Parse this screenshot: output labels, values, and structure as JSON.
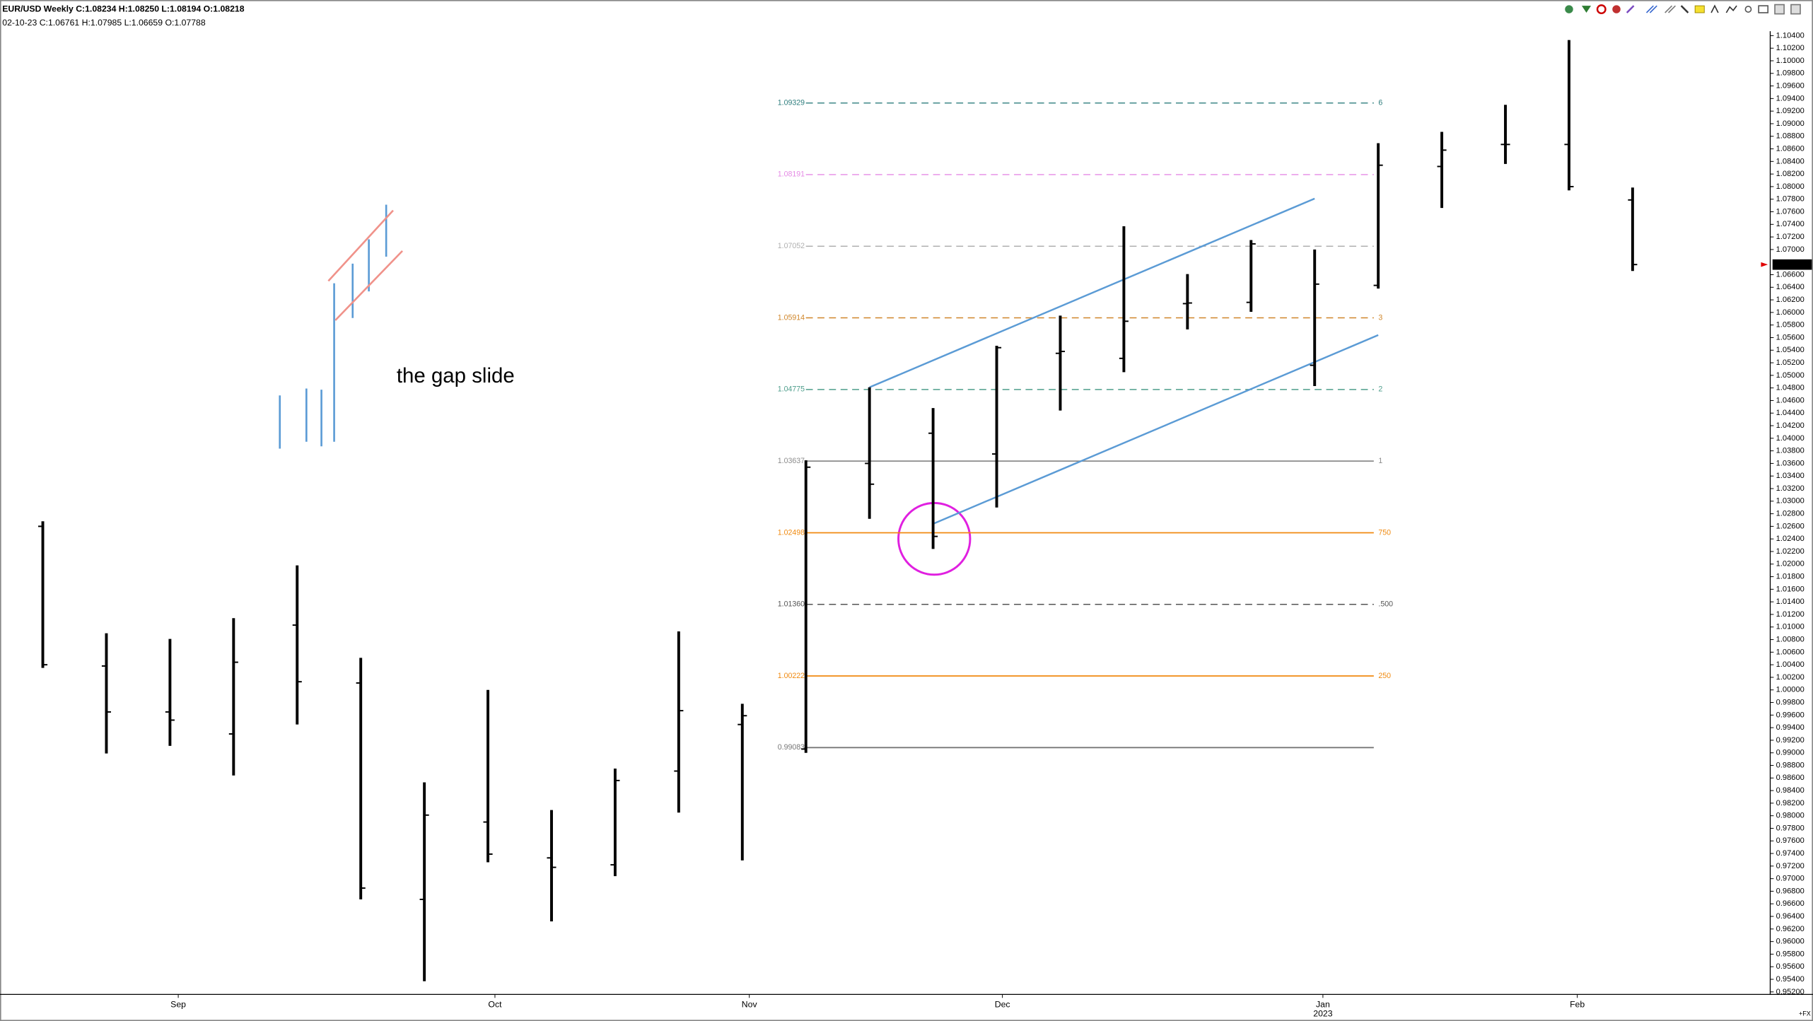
{
  "chart_data": {
    "type": "ohlc",
    "header": "EUR/USD Weekly  C:1.08234  H:1.08250  L:1.08194  O:1.08218",
    "subheader": "02-10-23  C:1.06761  H:1.07985  L:1.06659  O:1.07788",
    "annotation": "the gap slide",
    "footer_tag": "+FX",
    "color": "#000000",
    "open": [
      1.026,
      1.0038,
      0.9965,
      0.993,
      1.0103,
      1.0011,
      0.9667,
      0.979,
      0.9733,
      0.9722,
      0.9871,
      0.9945,
      0.9906,
      1.036,
      1.0408,
      1.0375,
      1.0535,
      1.0527,
      1.0614,
      1.0616,
      1.0516,
      1.0643,
      1.0832,
      1.0867,
      1.0867,
      1.07788
    ],
    "high": [
      1.0268,
      1.009,
      1.0081,
      1.0114,
      1.0198,
      1.0051,
      0.9853,
      1.0,
      0.9809,
      0.9875,
      1.0093,
      0.9978,
      1.0365,
      1.0481,
      1.0448,
      1.0547,
      1.0595,
      1.0737,
      1.0661,
      1.0715,
      1.07,
      1.0869,
      1.0887,
      1.093,
      1.1033,
      1.07985
    ],
    "low": [
      1.0035,
      0.9899,
      0.9911,
      0.9864,
      0.9945,
      0.9667,
      0.9537,
      0.9726,
      0.9632,
      0.9704,
      0.9805,
      0.9729,
      0.99,
      1.0272,
      1.0224,
      1.029,
      1.0444,
      1.0505,
      1.0573,
      1.0601,
      1.0483,
      1.0638,
      1.0766,
      1.0836,
      1.0794,
      1.06659
    ],
    "close": [
      1.004,
      0.9965,
      0.9952,
      1.0044,
      1.0013,
      0.9685,
      0.9801,
      0.9739,
      0.9718,
      0.9856,
      0.9967,
      0.9959,
      1.0354,
      1.0327,
      1.0244,
      1.0544,
      1.0538,
      1.0586,
      1.0615,
      1.0709,
      1.0645,
      1.0834,
      1.0858,
      1.0867,
      1.08,
      1.06761
    ],
    "xlim": [
      -0.673,
      27.164
    ],
    "xticks": [
      {
        "value": 2.13,
        "label": "Sep"
      },
      {
        "value": 7.11,
        "label": "Oct"
      },
      {
        "value": 11.11,
        "label": "Nov"
      },
      {
        "value": 15.09,
        "label": "Dec"
      },
      {
        "value": 20.13,
        "label": "Jan",
        "sublabel": "2023"
      },
      {
        "value": 24.13,
        "label": "Feb"
      }
    ],
    "ylim": [
      0.9516,
      1.1047
    ],
    "yticks": [
      {
        "value": 1.104,
        "label": "1.10400"
      },
      {
        "value": 1.102,
        "label": "1.10200"
      },
      {
        "value": 1.1,
        "label": "1.10000"
      },
      {
        "value": 1.098,
        "label": "1.09800"
      },
      {
        "value": 1.096,
        "label": "1.09600"
      },
      {
        "value": 1.094,
        "label": "1.09400"
      },
      {
        "value": 1.092,
        "label": "1.09200"
      },
      {
        "value": 1.09,
        "label": "1.09000"
      },
      {
        "value": 1.088,
        "label": "1.08800"
      },
      {
        "value": 1.086,
        "label": "1.08600"
      },
      {
        "value": 1.084,
        "label": "1.08400"
      },
      {
        "value": 1.082,
        "label": "1.08200"
      },
      {
        "value": 1.08,
        "label": "1.08000"
      },
      {
        "value": 1.078,
        "label": "1.07800"
      },
      {
        "value": 1.076,
        "label": "1.07600"
      },
      {
        "value": 1.074,
        "label": "1.07400"
      },
      {
        "value": 1.072,
        "label": "1.07200"
      },
      {
        "value": 1.07,
        "label": "1.07000"
      },
      {
        "value": 1.066,
        "label": "1.06600"
      },
      {
        "value": 1.064,
        "label": "1.06400"
      },
      {
        "value": 1.062,
        "label": "1.06200"
      },
      {
        "value": 1.06,
        "label": "1.06000"
      },
      {
        "value": 1.058,
        "label": "1.05800"
      },
      {
        "value": 1.056,
        "label": "1.05600"
      },
      {
        "value": 1.054,
        "label": "1.05400"
      },
      {
        "value": 1.052,
        "label": "1.05200"
      },
      {
        "value": 1.05,
        "label": "1.05000"
      },
      {
        "value": 1.048,
        "label": "1.04800"
      },
      {
        "value": 1.046,
        "label": "1.04600"
      },
      {
        "value": 1.044,
        "label": "1.04400"
      },
      {
        "value": 1.042,
        "label": "1.04200"
      },
      {
        "value": 1.04,
        "label": "1.04000"
      },
      {
        "value": 1.038,
        "label": "1.03800"
      },
      {
        "value": 1.036,
        "label": "1.03600"
      },
      {
        "value": 1.034,
        "label": "1.03400"
      },
      {
        "value": 1.032,
        "label": "1.03200"
      },
      {
        "value": 1.03,
        "label": "1.03000"
      },
      {
        "value": 1.028,
        "label": "1.02800"
      },
      {
        "value": 1.026,
        "label": "1.02600"
      },
      {
        "value": 1.024,
        "label": "1.02400"
      },
      {
        "value": 1.022,
        "label": "1.02200"
      },
      {
        "value": 1.02,
        "label": "1.02000"
      },
      {
        "value": 1.018,
        "label": "1.01800"
      },
      {
        "value": 1.016,
        "label": "1.01600"
      },
      {
        "value": 1.014,
        "label": "1.01400"
      },
      {
        "value": 1.012,
        "label": "1.01200"
      },
      {
        "value": 1.01,
        "label": "1.01000"
      },
      {
        "value": 1.008,
        "label": "1.00800"
      },
      {
        "value": 1.006,
        "label": "1.00600"
      },
      {
        "value": 1.004,
        "label": "1.00400"
      },
      {
        "value": 1.002,
        "label": "1.00200"
      },
      {
        "value": 1.0,
        "label": "1.00000"
      },
      {
        "value": 0.998,
        "label": "0.99800"
      },
      {
        "value": 0.996,
        "label": "0.99600"
      },
      {
        "value": 0.994,
        "label": "0.99400"
      },
      {
        "value": 0.992,
        "label": "0.99200"
      },
      {
        "value": 0.99,
        "label": "0.99000"
      },
      {
        "value": 0.988,
        "label": "0.98800"
      },
      {
        "value": 0.986,
        "label": "0.98600"
      },
      {
        "value": 0.984,
        "label": "0.98400"
      },
      {
        "value": 0.982,
        "label": "0.98200"
      },
      {
        "value": 0.98,
        "label": "0.98000"
      },
      {
        "value": 0.978,
        "label": "0.97800"
      },
      {
        "value": 0.976,
        "label": "0.97600"
      },
      {
        "value": 0.974,
        "label": "0.97400"
      },
      {
        "value": 0.972,
        "label": "0.97200"
      },
      {
        "value": 0.97,
        "label": "0.97000"
      },
      {
        "value": 0.968,
        "label": "0.96800"
      },
      {
        "value": 0.966,
        "label": "0.96600"
      },
      {
        "value": 0.964,
        "label": "0.96400"
      },
      {
        "value": 0.962,
        "label": "0.96200"
      },
      {
        "value": 0.96,
        "label": "0.96000"
      },
      {
        "value": 0.958,
        "label": "0.95800"
      },
      {
        "value": 0.956,
        "label": "0.95600"
      },
      {
        "value": 0.954,
        "label": "0.95400"
      },
      {
        "value": 0.952,
        "label": "0.95200"
      }
    ],
    "fib_range": [
      12,
      20.93
    ],
    "fib_levels": [
      {
        "value": 1.09329,
        "right": "6",
        "color": "#2e7d7d",
        "dash": true
      },
      {
        "value": 1.08191,
        "right": null,
        "color": "#e58ae5",
        "dash": true
      },
      {
        "value": 1.07052,
        "right": null,
        "color": "#b0b0b0",
        "dash": true
      },
      {
        "value": 1.05914,
        "right": "3",
        "color": "#d0862a",
        "dash": true
      },
      {
        "value": 1.04775,
        "right": "2",
        "color": "#4f9e8c",
        "dash": true
      },
      {
        "value": 1.03637,
        "right": "1",
        "color": "#8c8c8c",
        "dash": false
      },
      {
        "value": 1.02498,
        "right": "750",
        "color": "#f08a10",
        "dash": false
      },
      {
        "value": 1.0136,
        "label": "1.01360",
        "right": ".500",
        "color": "#555555",
        "dash": true
      },
      {
        "value": 1.00222,
        "right": "250",
        "color": "#f08a10",
        "dash": false
      },
      {
        "value": 0.99083,
        "right": null,
        "color": "#777777",
        "dash": false
      }
    ],
    "trendlines": [
      {
        "x": [
          13,
          20
        ],
        "y": [
          1.0481,
          1.0781
        ],
        "color": "#5b9bd5"
      },
      {
        "x": [
          14,
          21
        ],
        "y": [
          1.0264,
          1.0564
        ],
        "color": "#5b9bd5"
      }
    ]
  }
}
